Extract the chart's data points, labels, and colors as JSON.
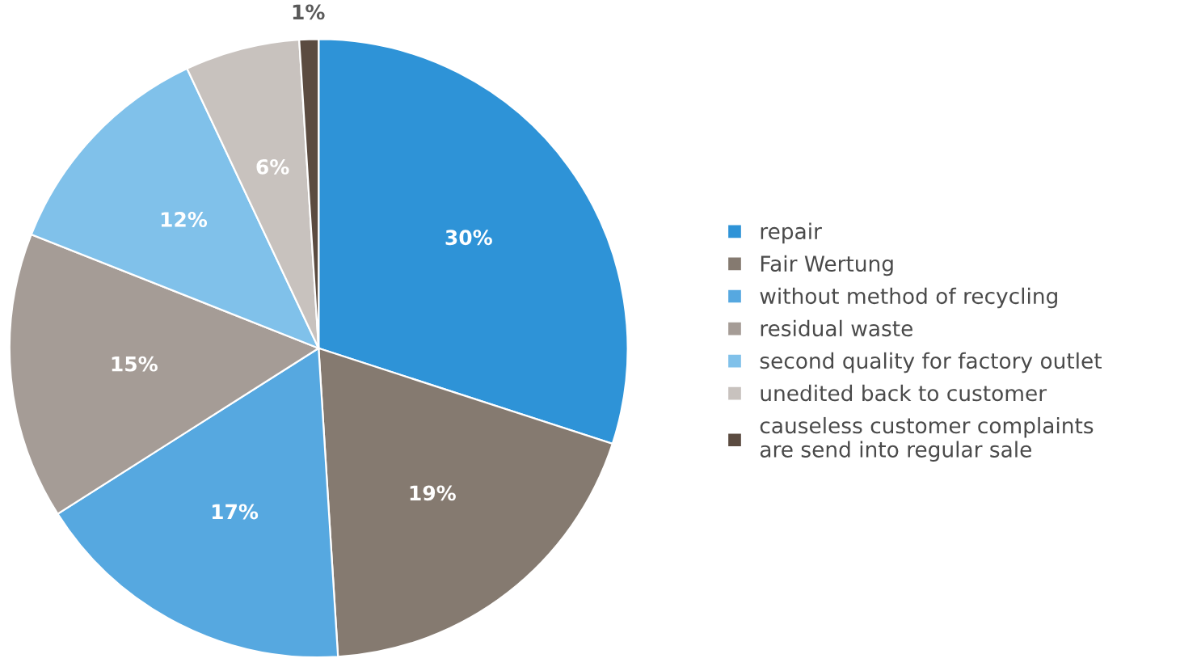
{
  "chart_data": {
    "type": "pie",
    "categories": [
      "repair",
      "Fair Wertung",
      "without method of recycling",
      "residual waste",
      "second quality for factory outlet",
      "unedited back to customer",
      "causeless customer complaints are send into regular sale"
    ],
    "values": [
      30,
      19,
      17,
      15,
      12,
      6,
      1
    ],
    "colors": [
      "#2e93d7",
      "#857a70",
      "#56a8e0",
      "#a59c96",
      "#80c1ea",
      "#c8c2be",
      "#5b4b40"
    ],
    "value_labels": [
      "30%",
      "19%",
      "17%",
      "15%",
      "12%",
      "6%",
      "1%"
    ],
    "legend": "right"
  }
}
